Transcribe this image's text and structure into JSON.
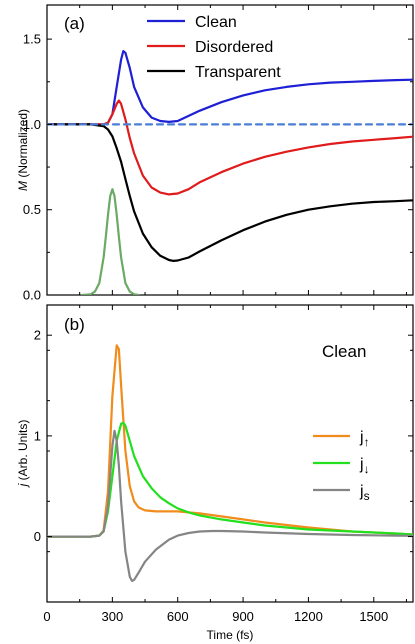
{
  "chart_data": [
    {
      "type": "line",
      "panel_label": "(a)",
      "ylabel_italic": "M",
      "ylabel_rest": " (Normalized)",
      "xlabel": "",
      "xlim": [
        0,
        1680
      ],
      "ylim": [
        0,
        1.7
      ],
      "yticks": [
        0.0,
        0.5,
        1.0,
        1.5
      ],
      "ytick_labels": [
        "0.0",
        "0.5",
        "1.0",
        "1.5"
      ],
      "xticks": [
        0,
        300,
        600,
        900,
        1200,
        1500
      ],
      "legend_position": "top-center",
      "series": [
        {
          "name": "Clean",
          "color": "#1f1fd6",
          "x": [
            0,
            200,
            260,
            280,
            300,
            320,
            340,
            350,
            360,
            380,
            400,
            440,
            480,
            520,
            560,
            600,
            650,
            700,
            800,
            900,
            1000,
            1100,
            1200,
            1300,
            1400,
            1500,
            1600,
            1680
          ],
          "y": [
            1.0,
            1.0,
            1.0,
            1.01,
            1.06,
            1.22,
            1.38,
            1.43,
            1.42,
            1.33,
            1.22,
            1.1,
            1.04,
            1.02,
            1.015,
            1.02,
            1.05,
            1.08,
            1.13,
            1.17,
            1.2,
            1.22,
            1.235,
            1.245,
            1.25,
            1.255,
            1.26,
            1.262
          ]
        },
        {
          "name": "Disordered",
          "color": "#e01b1b",
          "x": [
            0,
            200,
            260,
            280,
            300,
            320,
            330,
            340,
            360,
            380,
            400,
            440,
            480,
            520,
            560,
            600,
            650,
            700,
            800,
            900,
            1000,
            1100,
            1200,
            1300,
            1400,
            1500,
            1600,
            1680
          ],
          "y": [
            1.0,
            1.0,
            1.0,
            1.01,
            1.06,
            1.12,
            1.14,
            1.12,
            1.03,
            0.92,
            0.83,
            0.7,
            0.63,
            0.6,
            0.59,
            0.595,
            0.62,
            0.66,
            0.72,
            0.77,
            0.81,
            0.84,
            0.865,
            0.885,
            0.9,
            0.91,
            0.92,
            0.928
          ]
        },
        {
          "name": "Transparent",
          "color": "#000000",
          "x": [
            0,
            200,
            260,
            280,
            300,
            320,
            340,
            360,
            380,
            400,
            440,
            480,
            520,
            560,
            580,
            600,
            650,
            700,
            800,
            900,
            1000,
            1100,
            1200,
            1300,
            1400,
            1500,
            1600,
            1680
          ],
          "y": [
            1.0,
            1.0,
            0.99,
            0.97,
            0.93,
            0.86,
            0.78,
            0.68,
            0.58,
            0.49,
            0.36,
            0.28,
            0.23,
            0.205,
            0.2,
            0.202,
            0.22,
            0.255,
            0.32,
            0.38,
            0.43,
            0.47,
            0.5,
            0.52,
            0.535,
            0.545,
            0.55,
            0.555
          ]
        },
        {
          "color": "#4a7ed8",
          "dashed": true,
          "x": [
            0,
            1680
          ],
          "y": [
            1.0,
            1.0
          ]
        },
        {
          "color": "#6aaa64",
          "x": [
            160,
            200,
            220,
            240,
            260,
            270,
            280,
            290,
            300,
            310,
            320,
            330,
            340,
            360,
            380,
            400,
            420
          ],
          "y": [
            0.0,
            0.004,
            0.02,
            0.07,
            0.22,
            0.34,
            0.47,
            0.58,
            0.62,
            0.58,
            0.47,
            0.34,
            0.22,
            0.07,
            0.02,
            0.004,
            0.0
          ]
        }
      ]
    },
    {
      "type": "line",
      "panel_label": "(b)",
      "annotation": "Clean",
      "ylabel_italic": "j",
      "ylabel_rest": " (Arb. Units)",
      "xlabel": "Time (fs)",
      "xlim": [
        0,
        1680
      ],
      "ylim": [
        -0.65,
        2.3
      ],
      "yticks": [
        0,
        1,
        2
      ],
      "ytick_labels": [
        "0",
        "1",
        "2"
      ],
      "xticks": [
        0,
        300,
        600,
        900,
        1200,
        1500
      ],
      "xtick_labels": [
        "0",
        "300",
        "600",
        "900",
        "1200",
        "1500"
      ],
      "legend_position": "right",
      "series": [
        {
          "name": "j",
          "subscript": "↑",
          "color": "#f08c1c",
          "x": [
            0,
            200,
            240,
            260,
            280,
            300,
            320,
            330,
            340,
            360,
            380,
            400,
            420,
            450,
            500,
            600,
            700,
            800,
            900,
            1000,
            1200,
            1400,
            1600,
            1680
          ],
          "y": [
            0,
            0,
            0.01,
            0.06,
            0.45,
            1.4,
            1.9,
            1.86,
            1.5,
            0.85,
            0.5,
            0.35,
            0.29,
            0.26,
            0.25,
            0.25,
            0.23,
            0.2,
            0.17,
            0.14,
            0.09,
            0.05,
            0.03,
            0.02
          ]
        },
        {
          "name": "j",
          "subscript": "↓",
          "color": "#22e01e",
          "x": [
            0,
            200,
            240,
            260,
            280,
            300,
            320,
            340,
            350,
            360,
            380,
            400,
            440,
            480,
            520,
            560,
            600,
            650,
            700,
            800,
            900,
            1000,
            1200,
            1400,
            1600,
            1680
          ],
          "y": [
            0,
            0,
            0.01,
            0.05,
            0.25,
            0.6,
            0.95,
            1.12,
            1.13,
            1.1,
            0.95,
            0.8,
            0.6,
            0.48,
            0.39,
            0.33,
            0.28,
            0.24,
            0.21,
            0.17,
            0.14,
            0.11,
            0.07,
            0.05,
            0.03,
            0.02
          ]
        },
        {
          "name": "j",
          "subscript": "s",
          "color": "#858585",
          "x": [
            0,
            200,
            240,
            260,
            280,
            300,
            310,
            320,
            330,
            340,
            360,
            380,
            390,
            400,
            420,
            450,
            500,
            560,
            600,
            650,
            700,
            760,
            800,
            900,
            1000,
            1200,
            1400,
            1600,
            1680
          ],
          "y": [
            0,
            0,
            0.01,
            0.05,
            0.3,
            0.9,
            1.05,
            0.95,
            0.7,
            0.35,
            -0.15,
            -0.4,
            -0.44,
            -0.43,
            -0.36,
            -0.25,
            -0.13,
            -0.03,
            0.01,
            0.035,
            0.05,
            0.055,
            0.055,
            0.05,
            0.04,
            0.025,
            0.015,
            0.01,
            0.008
          ]
        }
      ]
    }
  ]
}
